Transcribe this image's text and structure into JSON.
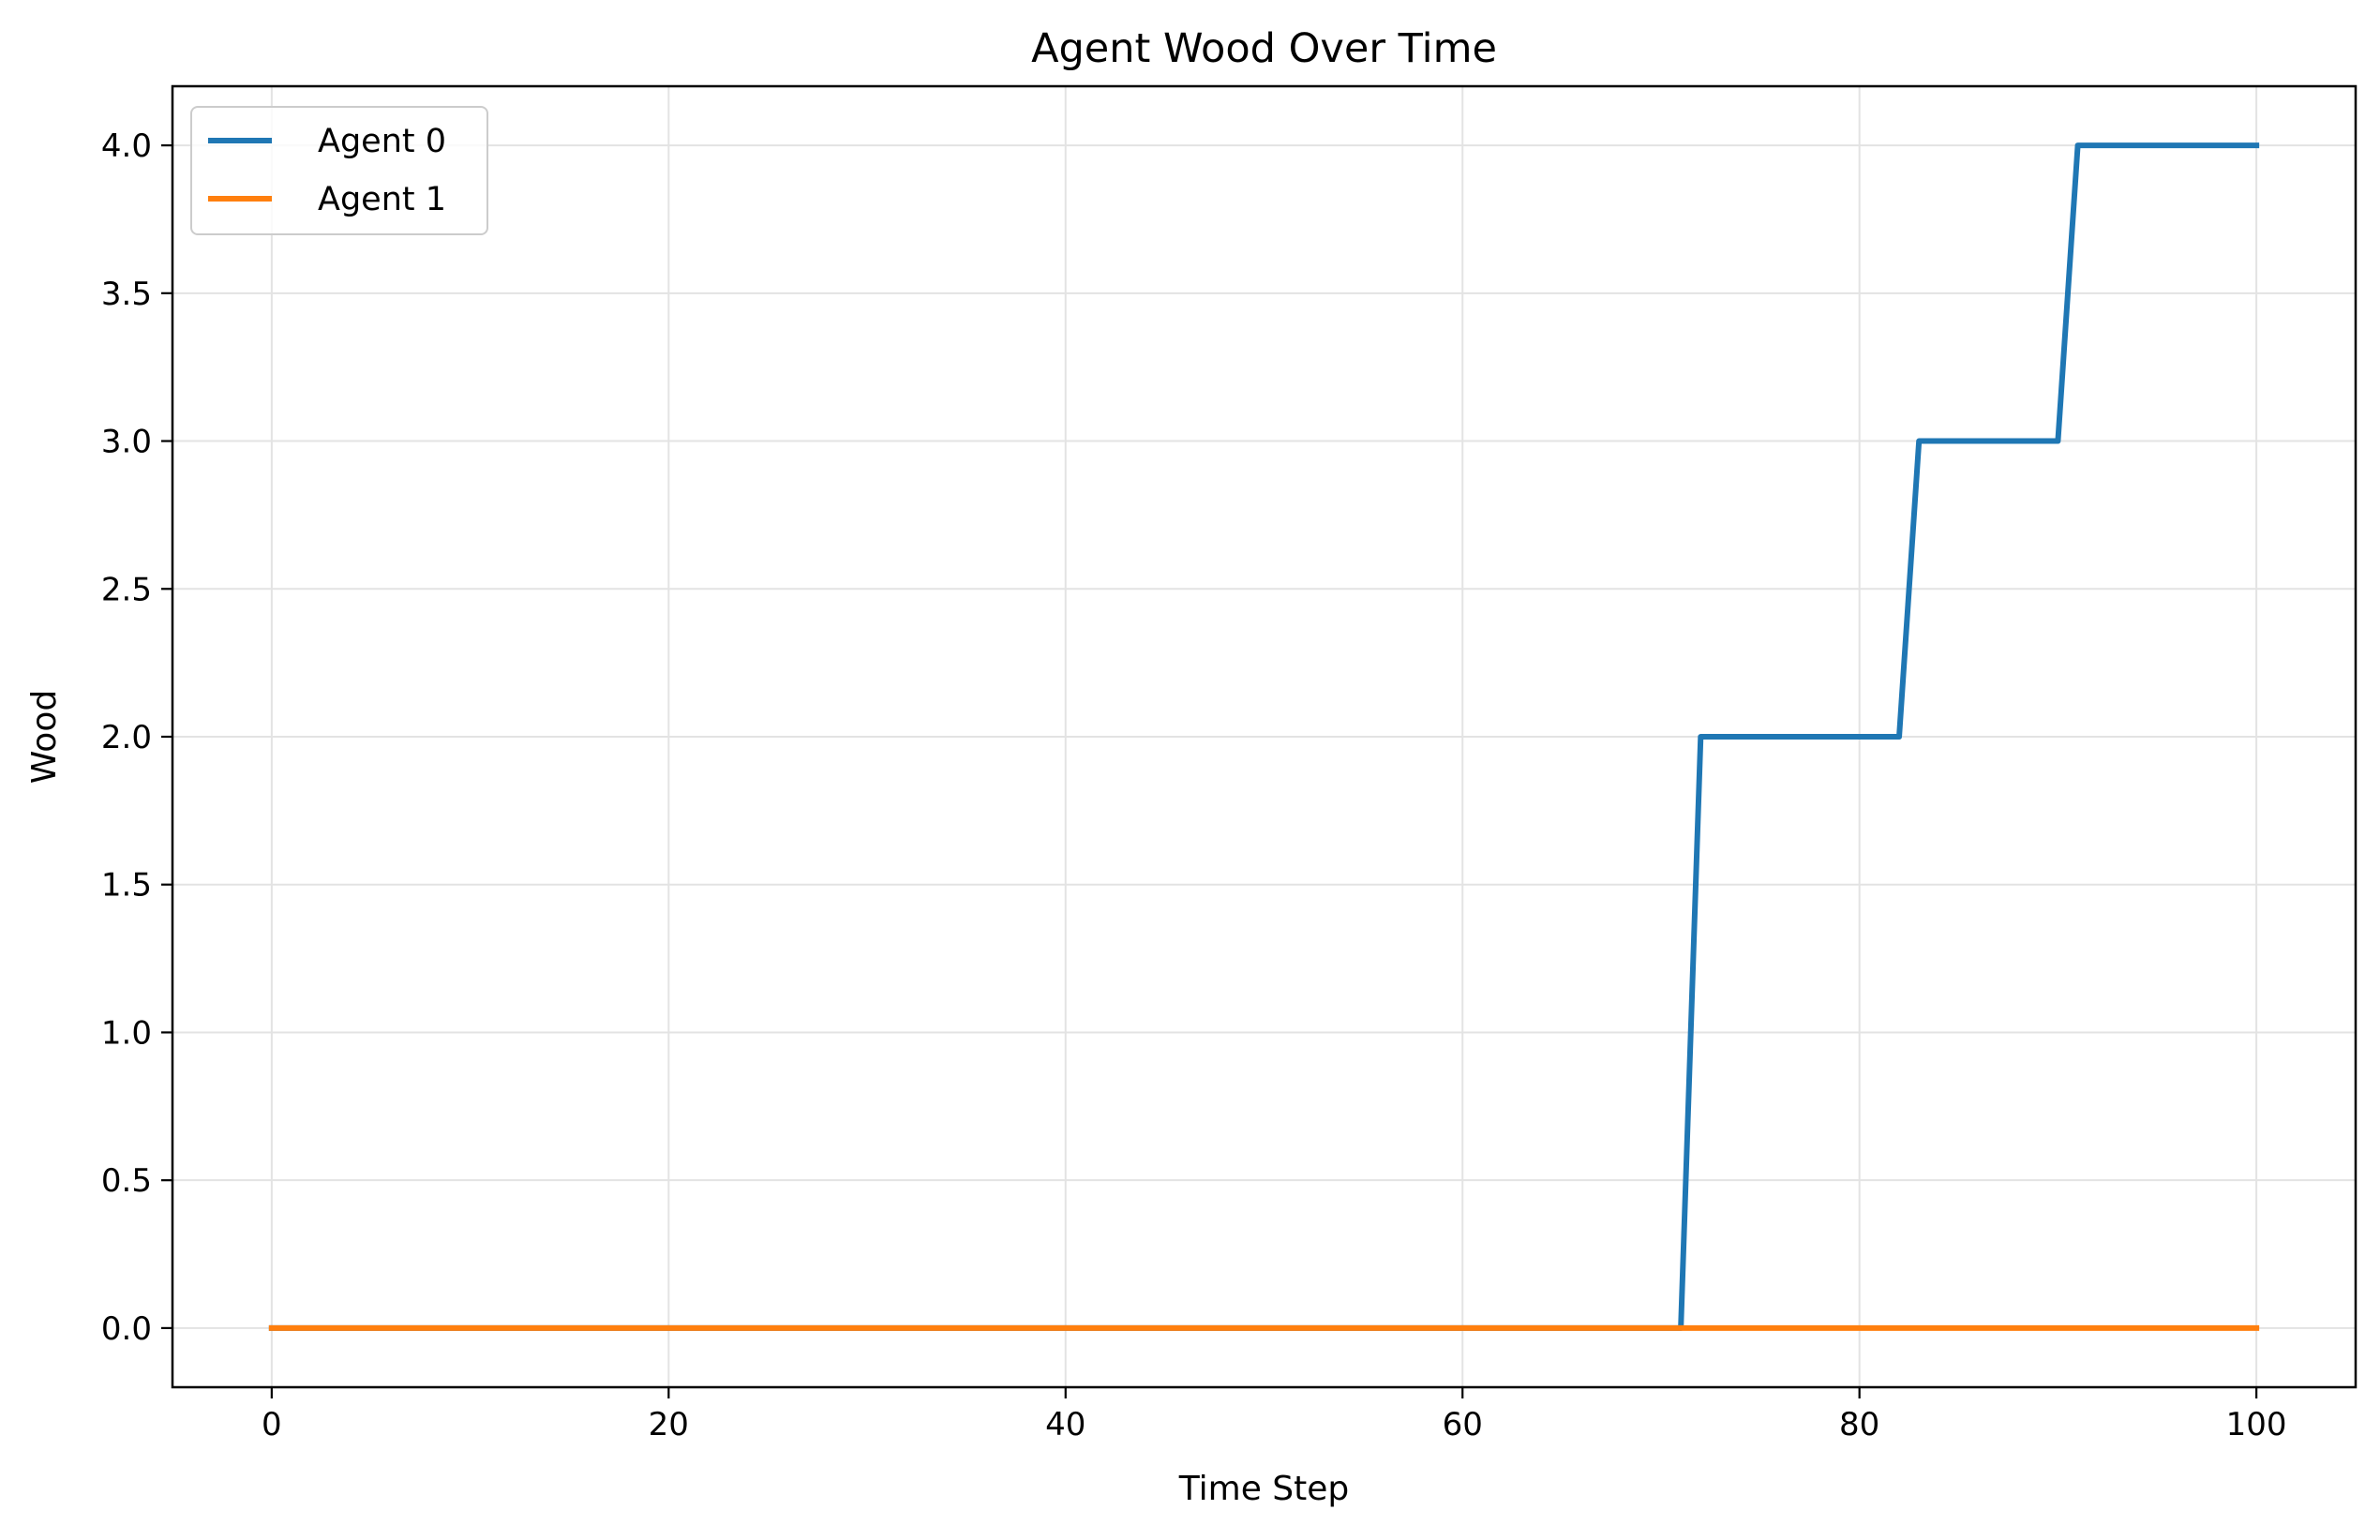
{
  "chart_data": {
    "type": "line",
    "title": "Agent Wood Over Time",
    "xlabel": "Time Step",
    "ylabel": "Wood",
    "xlim": [
      -5,
      105
    ],
    "ylim": [
      -0.2,
      4.2
    ],
    "xticks": [
      0,
      20,
      40,
      60,
      80,
      100
    ],
    "yticks": [
      0.0,
      0.5,
      1.0,
      1.5,
      2.0,
      2.5,
      3.0,
      3.5,
      4.0
    ],
    "x_tick_labels": [
      "0",
      "20",
      "40",
      "60",
      "80",
      "100"
    ],
    "y_tick_labels": [
      "0.0",
      "0.5",
      "1.0",
      "1.5",
      "2.0",
      "2.5",
      "3.0",
      "3.5",
      "4.0"
    ],
    "grid": true,
    "legend_position": "top-left",
    "series": [
      {
        "name": "Agent 0",
        "color": "#1f77b4",
        "x": [
          0,
          71,
          72,
          82,
          83,
          90,
          91,
          100
        ],
        "y": [
          0,
          0,
          2,
          2,
          3,
          3,
          4,
          4
        ]
      },
      {
        "name": "Agent 1",
        "color": "#ff7f0e",
        "x": [
          0,
          100
        ],
        "y": [
          0,
          0
        ]
      }
    ]
  }
}
